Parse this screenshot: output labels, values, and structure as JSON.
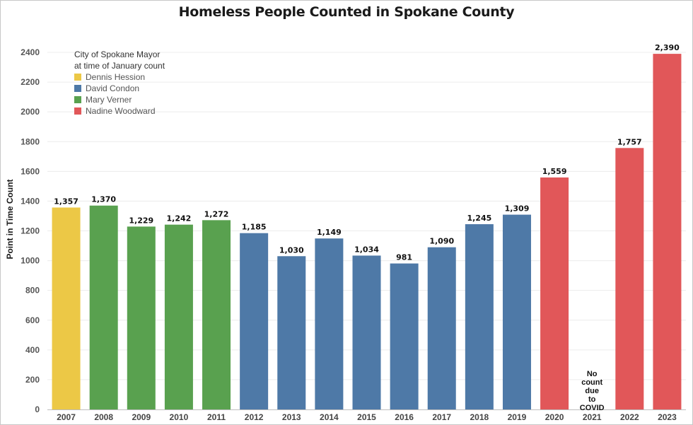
{
  "chart_data": {
    "type": "bar",
    "title": "Homeless People Counted in Spokane County",
    "ylabel": "Point in Time Count",
    "xlabel": "",
    "ylim": [
      0,
      2500
    ],
    "yticks": [
      0,
      200,
      400,
      600,
      800,
      1000,
      1200,
      1400,
      1600,
      1800,
      2000,
      2200,
      2400
    ],
    "grid": true,
    "categories": [
      "2007",
      "2008",
      "2009",
      "2010",
      "2011",
      "2012",
      "2013",
      "2014",
      "2015",
      "2016",
      "2017",
      "2018",
      "2019",
      "2020",
      "2021",
      "2022",
      "2023"
    ],
    "values": [
      1357,
      1370,
      1229,
      1242,
      1272,
      1185,
      1030,
      1149,
      1034,
      981,
      1090,
      1245,
      1309,
      1559,
      null,
      1757,
      2390
    ],
    "value_labels": [
      "1,357",
      "1,370",
      "1,229",
      "1,242",
      "1,272",
      "1,185",
      "1,030",
      "1,149",
      "1,034",
      "981",
      "1,090",
      "1,245",
      "1,309",
      "1,559",
      "",
      "1,757",
      "2,390"
    ],
    "mayor": [
      "Dennis Hession",
      "Mary Verner",
      "Mary Verner",
      "Mary Verner",
      "Mary Verner",
      "David Condon",
      "David Condon",
      "David Condon",
      "David Condon",
      "David Condon",
      "David Condon",
      "David Condon",
      "David Condon",
      "Nadine Woodward",
      "",
      "Nadine Woodward",
      "Nadine Woodward"
    ],
    "legend": {
      "title_line1": "City of Spokane Mayor",
      "title_line2": "at time of January count",
      "placement": "top-left",
      "entries": [
        {
          "name": "Dennis Hession",
          "color": "#ecc846"
        },
        {
          "name": "David Condon",
          "color": "#4e79a7"
        },
        {
          "name": "Mary Verner",
          "color": "#59a14f"
        },
        {
          "name": "Nadine Woodward",
          "color": "#e15759"
        }
      ]
    },
    "annotation": {
      "category": "2021",
      "lines": [
        "No",
        "count",
        "due",
        "to",
        "COVID"
      ]
    }
  }
}
